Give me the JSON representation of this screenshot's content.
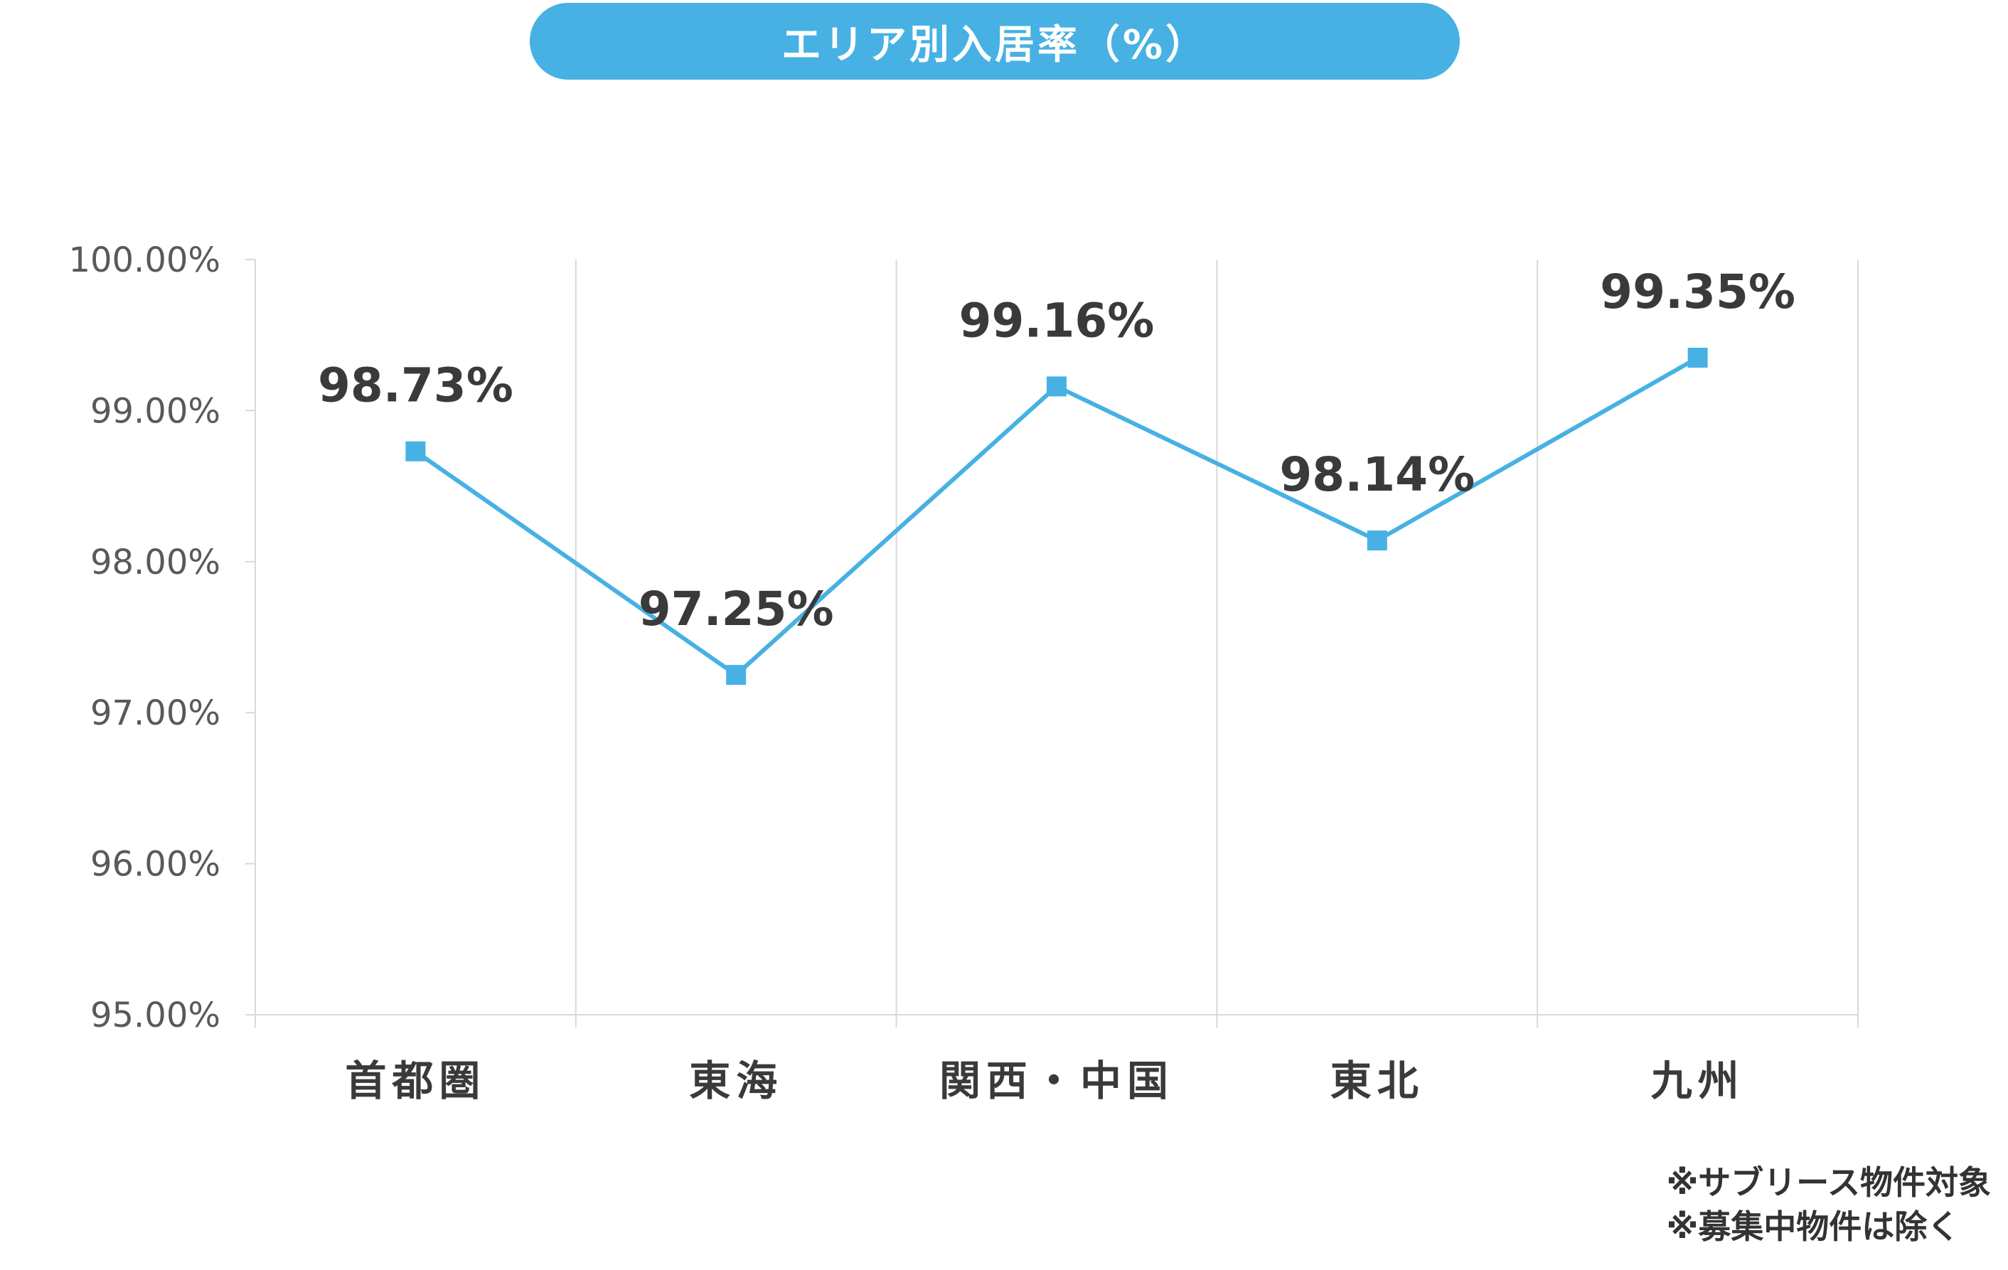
{
  "title": "エリア別入居率（%）",
  "notes": [
    "※サブリース物件対象",
    "※募集中物件は除く"
  ],
  "colors": {
    "accent": "#47b1e4",
    "line": "#47b1e4",
    "marker": "#47b1e4",
    "grid": "#d9d9d9",
    "tick_text": "#595959",
    "label_text": "#3a3a3a"
  },
  "chart_data": {
    "type": "line",
    "categories": [
      "首都圏",
      "東海",
      "関西・中国",
      "東北",
      "九州"
    ],
    "values": [
      98.73,
      97.25,
      99.16,
      98.14,
      99.35
    ],
    "data_labels": [
      "98.73%",
      "97.25%",
      "99.16%",
      "98.14%",
      "99.35%"
    ],
    "yticks": [
      95,
      96,
      97,
      98,
      99,
      100
    ],
    "ytick_labels": [
      "95.00%",
      "96.00%",
      "97.00%",
      "98.00%",
      "99.00%",
      "100.00%"
    ],
    "ylim": [
      95,
      100
    ],
    "grid": "vertical",
    "marker": "square",
    "legend": "none"
  }
}
